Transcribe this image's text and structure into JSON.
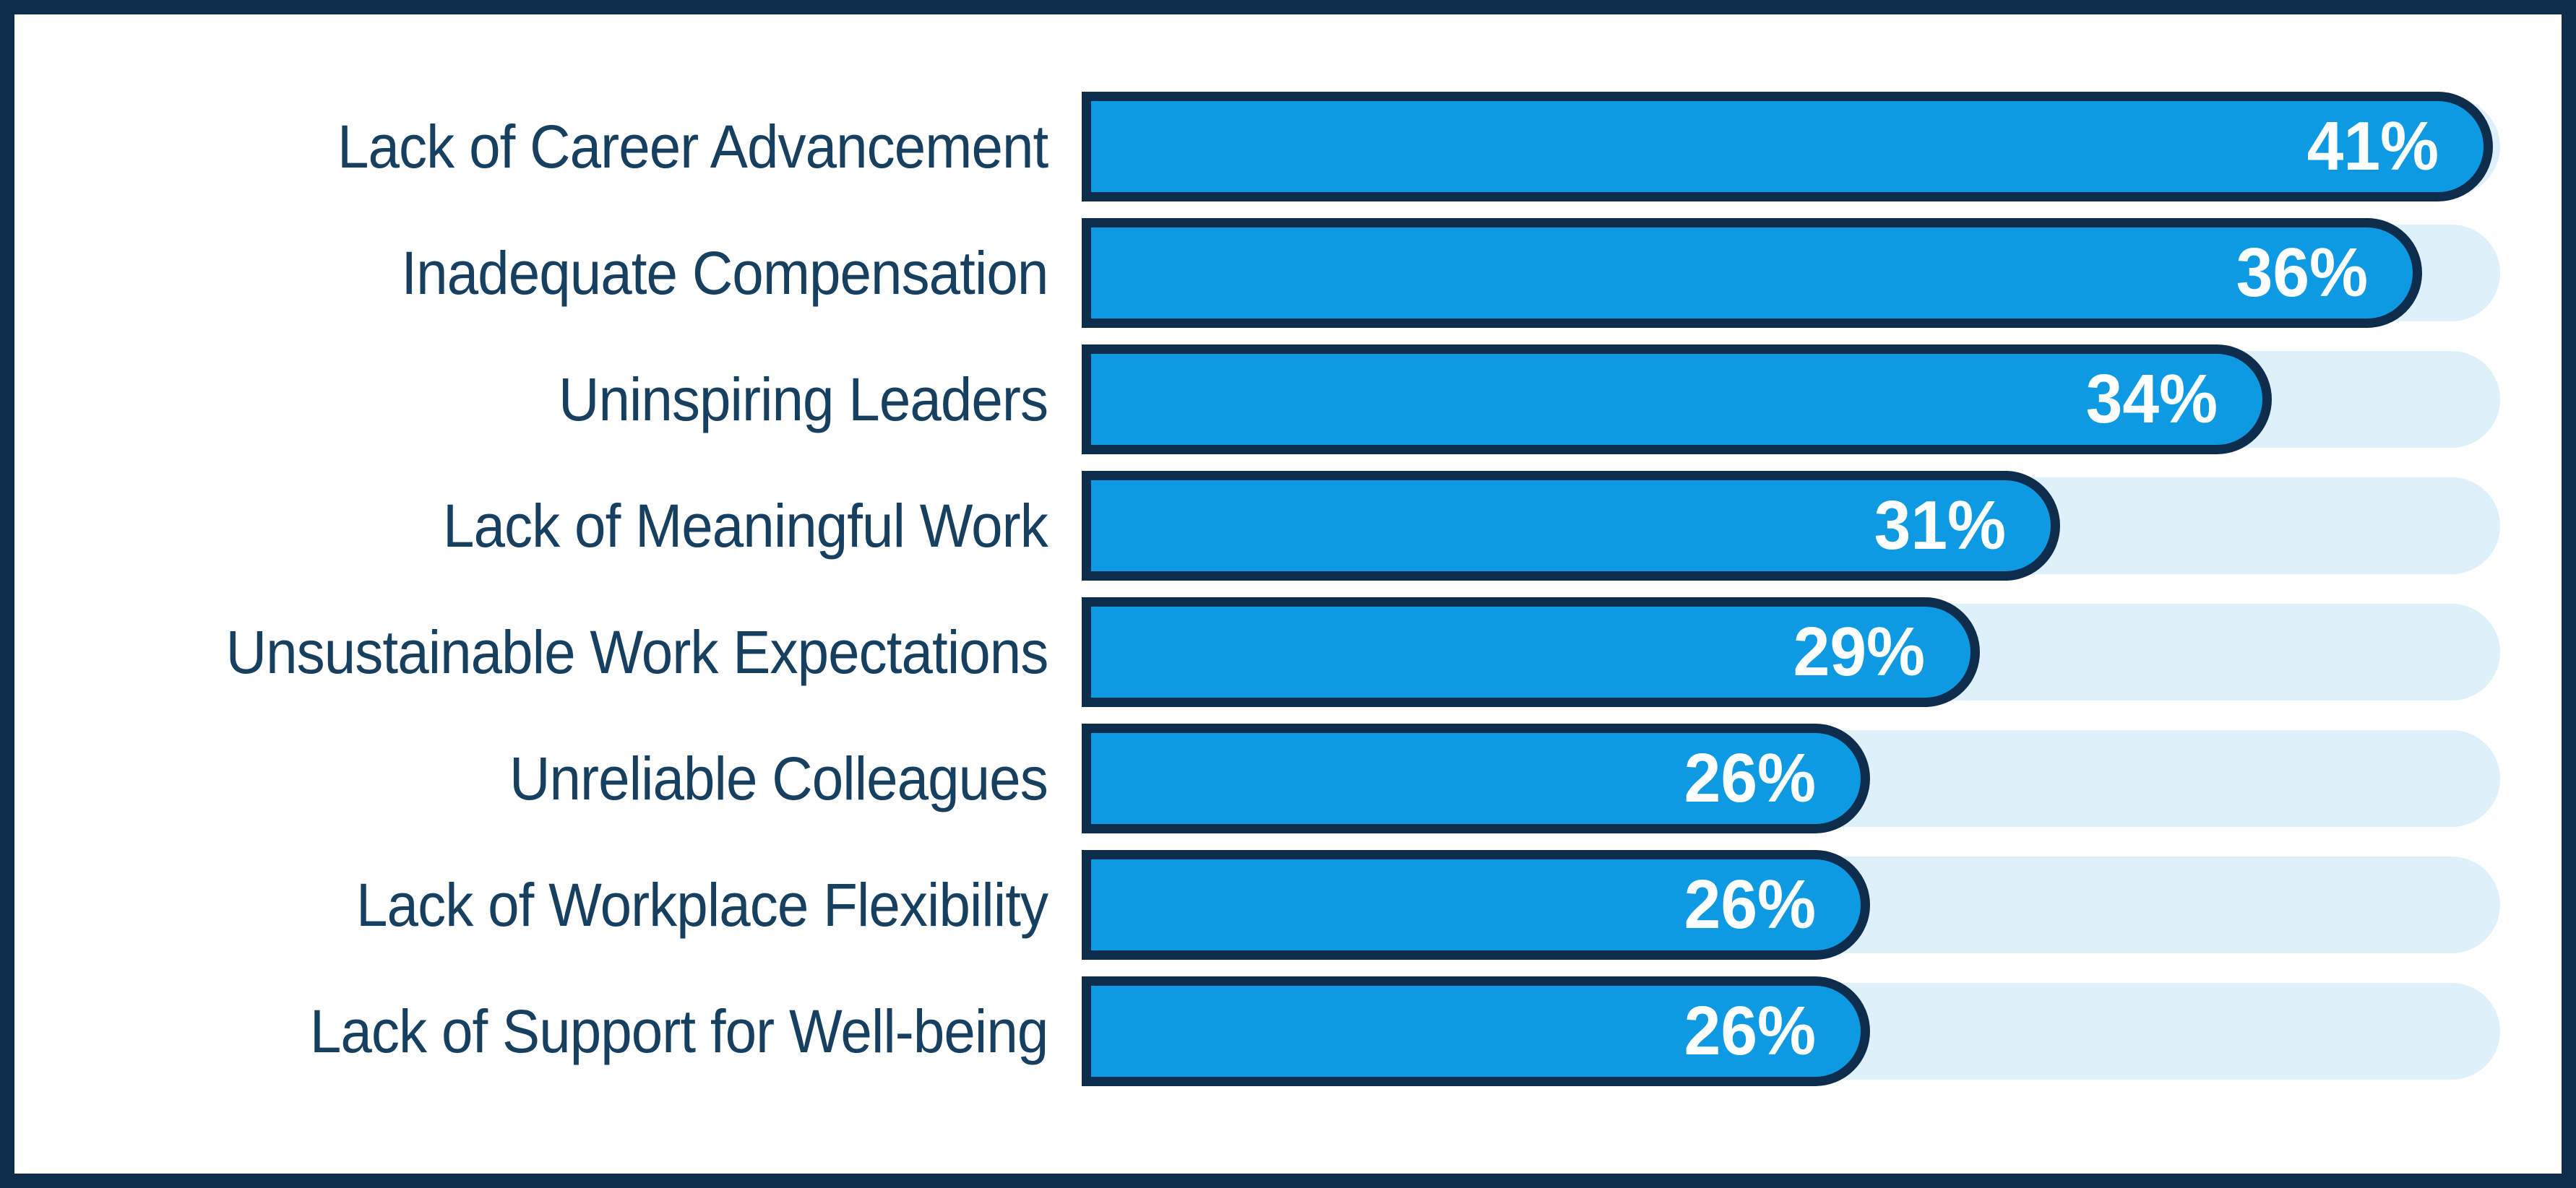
{
  "chart_data": {
    "type": "bar",
    "orientation": "horizontal",
    "title": "",
    "xlabel": "",
    "ylabel": "",
    "axes_shown": false,
    "grid": false,
    "legend": "none",
    "data_labels": "inside-end",
    "categories": [
      "Lack of Career Advancement",
      "Inadequate Compensation",
      "Uninspiring Leaders",
      "Lack of Meaningful Work",
      "Unsustainable Work Expectations",
      "Unreliable Colleagues",
      "Lack of Workplace Flexibility",
      "Lack of Support for Well-being"
    ],
    "values": [
      41,
      36,
      34,
      31,
      29,
      26,
      26,
      26
    ],
    "value_labels": [
      "41%",
      "36%",
      "34%",
      "31%",
      "29%",
      "26%",
      "26%",
      "26%"
    ],
    "bar_frac": [
      0.995,
      0.945,
      0.839,
      0.69,
      0.633,
      0.556,
      0.556,
      0.556
    ],
    "colors": {
      "barBlue": "#0e9ae2",
      "navy": "#0e2c4b",
      "trackBlue": "#def0fa",
      "labelNavy": "#173f60",
      "valueText": "#ffffff",
      "bg": "#ffffff"
    }
  }
}
